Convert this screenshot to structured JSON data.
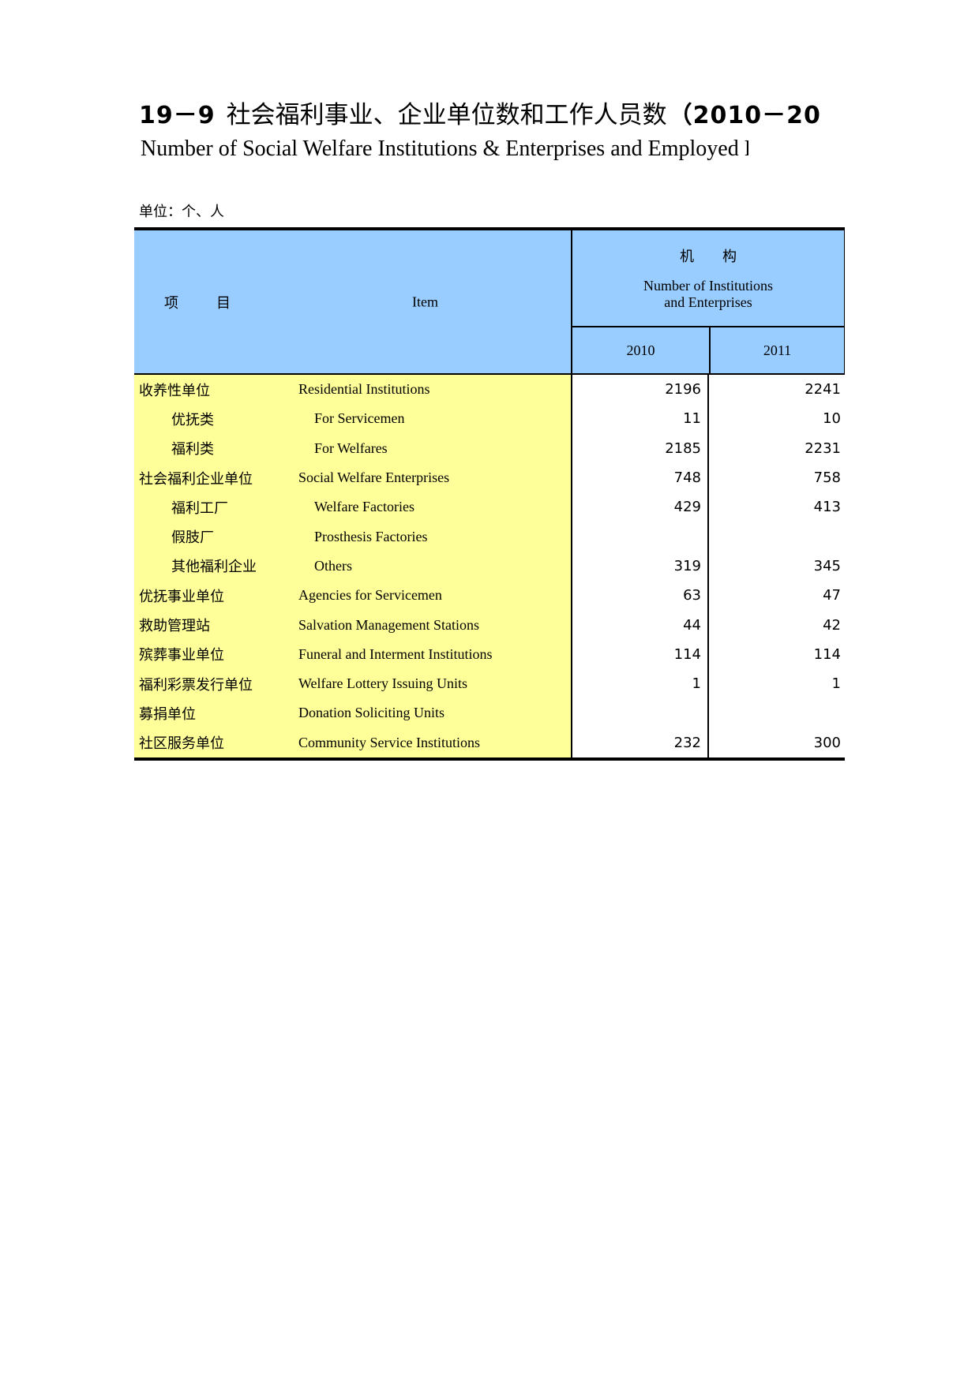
{
  "header": {
    "table_no": "19－9",
    "title_zh": "社会福利事业、企业单位数和工作人员数",
    "title_years": "（2010－20",
    "title_en": "Number of Social Welfare Institutions & Enterprises and Employed",
    "title_en_cut": "P",
    "unit_note": "单位：个、人"
  },
  "table": {
    "item_header": {
      "zh_left": "项",
      "zh_right": "目",
      "en": "Item"
    },
    "group_header": {
      "zh": "机　　构",
      "en_line1": "Number of Institutions",
      "en_line2": "and Enterprises"
    },
    "year_columns": [
      "2010",
      "2011"
    ],
    "rows": [
      {
        "zh": "收养性单位",
        "en": "Residential Institutions",
        "indent": 0,
        "v2010": "2196",
        "v2011": "2241"
      },
      {
        "zh": "优抚类",
        "en": "For Servicemen",
        "indent": 1,
        "v2010": "11",
        "v2011": "10"
      },
      {
        "zh": "福利类",
        "en": "For Welfares",
        "indent": 1,
        "v2010": "2185",
        "v2011": "2231"
      },
      {
        "zh": "社会福利企业单位",
        "en": "Social Welfare Enterprises",
        "indent": 0,
        "v2010": "748",
        "v2011": "758"
      },
      {
        "zh": "福利工厂",
        "en": "Welfare Factories",
        "indent": 1,
        "v2010": "429",
        "v2011": "413"
      },
      {
        "zh": "假肢厂",
        "en": "Prosthesis Factories",
        "indent": 1,
        "v2010": "",
        "v2011": ""
      },
      {
        "zh": "其他福利企业",
        "en": "Others",
        "indent": 1,
        "v2010": "319",
        "v2011": "345"
      },
      {
        "zh": "优抚事业单位",
        "en": "Agencies for Servicemen",
        "indent": 0,
        "v2010": "63",
        "v2011": "47"
      },
      {
        "zh": "救助管理站",
        "en": "Salvation Management Stations",
        "indent": 0,
        "v2010": "44",
        "v2011": "42"
      },
      {
        "zh": "殡葬事业单位",
        "en": "Funeral and Interment Institutions",
        "indent": 0,
        "v2010": "114",
        "v2011": "114"
      },
      {
        "zh": "福利彩票发行单位",
        "en": "Welfare Lottery Issuing Units",
        "indent": 0,
        "v2010": "1",
        "v2011": "1"
      },
      {
        "zh": "募捐单位",
        "en": "Donation Soliciting Units",
        "indent": 0,
        "v2010": "",
        "v2011": ""
      },
      {
        "zh": "社区服务单位",
        "en": "Community Service Institutions",
        "indent": 0,
        "v2010": "232",
        "v2011": "300"
      }
    ]
  },
  "colors": {
    "header_blue": "#99CCFF",
    "body_yellow": "#FFFF99",
    "border": "#000000"
  }
}
